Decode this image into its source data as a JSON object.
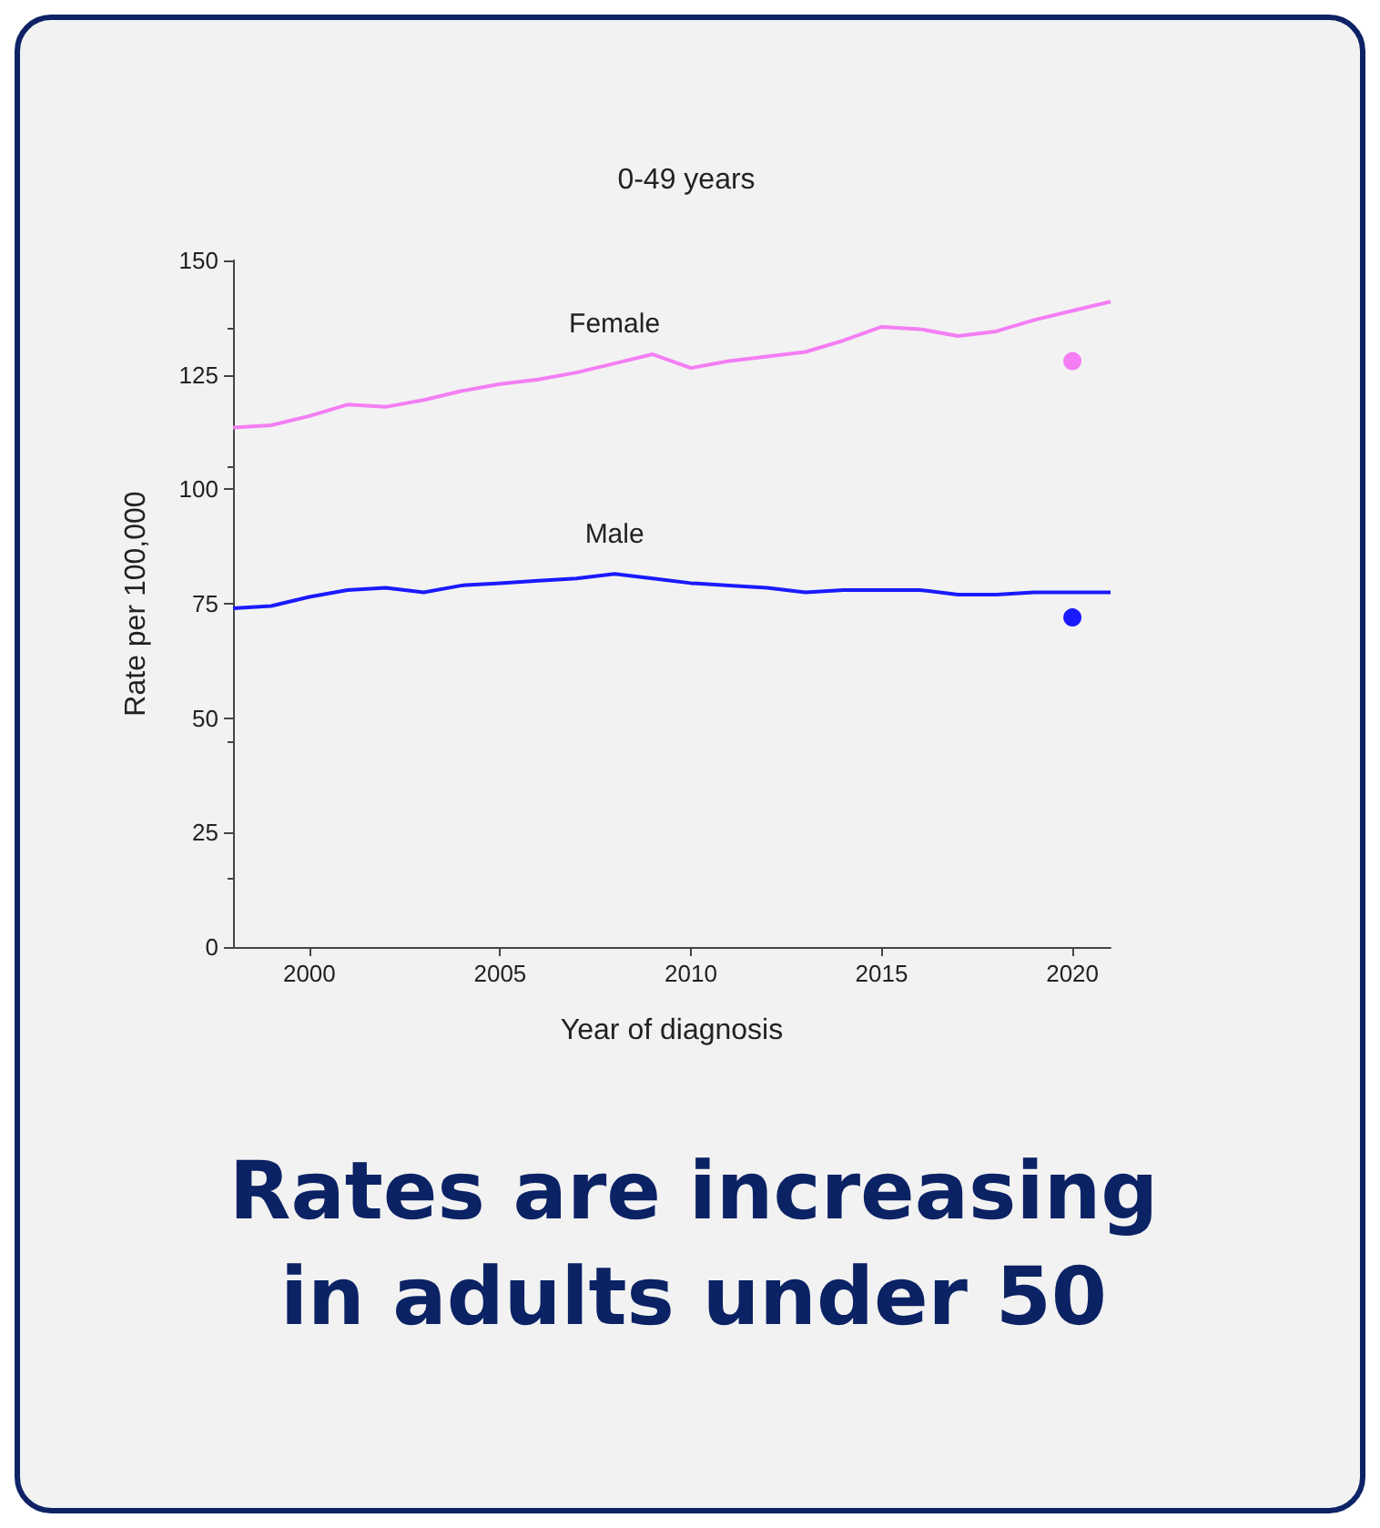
{
  "chart_data": {
    "type": "line",
    "title": "0-49 years",
    "xlabel": "Year of diagnosis",
    "ylabel": "Rate per 100,000",
    "x": [
      1998,
      1999,
      2000,
      2001,
      2002,
      2003,
      2004,
      2005,
      2006,
      2007,
      2008,
      2009,
      2010,
      2011,
      2012,
      2013,
      2014,
      2015,
      2016,
      2017,
      2018,
      2019,
      2020,
      2021
    ],
    "series": [
      {
        "name": "Female",
        "color": "#f47ef4",
        "marker": "none",
        "values": [
          113.5,
          114,
          116,
          118.5,
          118,
          119.5,
          121.5,
          123,
          124,
          125.5,
          127.5,
          129.5,
          126.5,
          128,
          129,
          130,
          132.5,
          135.5,
          135,
          133.5,
          134.5,
          137,
          139,
          141
        ]
      },
      {
        "name": "Male",
        "color": "#1a1aff",
        "marker": "none",
        "values": [
          74,
          74.5,
          76.5,
          78,
          78.5,
          77.5,
          79,
          79.5,
          80,
          80.5,
          81.5,
          80.5,
          79.5,
          79,
          78.5,
          77.5,
          78,
          78,
          78,
          77,
          77,
          77.5,
          77.5,
          77.5
        ]
      },
      {
        "type": "scatter",
        "color": "#f47ef4",
        "marker": "circle",
        "x": [
          2020
        ],
        "values": [
          128
        ]
      },
      {
        "type": "scatter",
        "color": "#1a1aff",
        "marker": "circle",
        "x": [
          2020
        ],
        "values": [
          72
        ]
      }
    ],
    "xlim": [
      1998,
      2021
    ],
    "xticks": [
      2000,
      2005,
      2010,
      2015,
      2020
    ],
    "ylim": [
      0,
      150
    ],
    "yticks": [
      0,
      25,
      50,
      75,
      100,
      125,
      150
    ],
    "grid": false,
    "legend": false,
    "annotations": [
      "Rates are increasing in adults under 50"
    ]
  }
}
